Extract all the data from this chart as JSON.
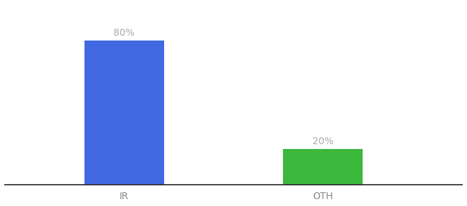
{
  "categories": [
    "IR",
    "OTH"
  ],
  "values": [
    80,
    20
  ],
  "bar_colors": [
    "#4169e1",
    "#3cb83c"
  ],
  "labels": [
    "80%",
    "20%"
  ],
  "background_color": "#ffffff",
  "bar_width": 0.4,
  "ylim": [
    0,
    100
  ],
  "label_fontsize": 10,
  "tick_fontsize": 10,
  "label_color": "#aaaaaa",
  "tick_color": "#888888",
  "spine_color": "#222222"
}
